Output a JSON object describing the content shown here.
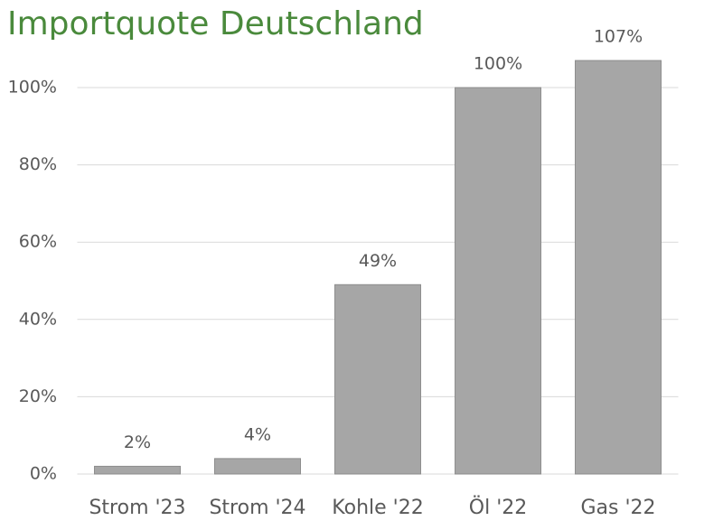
{
  "chart_data": {
    "type": "bar",
    "title": "Importquote Deutschland",
    "categories": [
      "Strom '23",
      "Strom '24",
      "Kohle '22",
      "Öl '22",
      "Gas '22"
    ],
    "values": [
      2,
      4,
      49,
      100,
      107
    ],
    "value_labels": [
      "2%",
      "4%",
      "49%",
      "100%",
      "107%"
    ],
    "color": "#a6a6a6",
    "ylim": [
      0,
      110
    ],
    "yticks": [
      {
        "value": 0,
        "label": "0%"
      },
      {
        "value": 20,
        "label": "20%"
      },
      {
        "value": 40,
        "label": "40%"
      },
      {
        "value": 60,
        "label": "60%"
      },
      {
        "value": 80,
        "label": "80%"
      },
      {
        "value": 100,
        "label": "100%"
      }
    ],
    "grid": true
  }
}
